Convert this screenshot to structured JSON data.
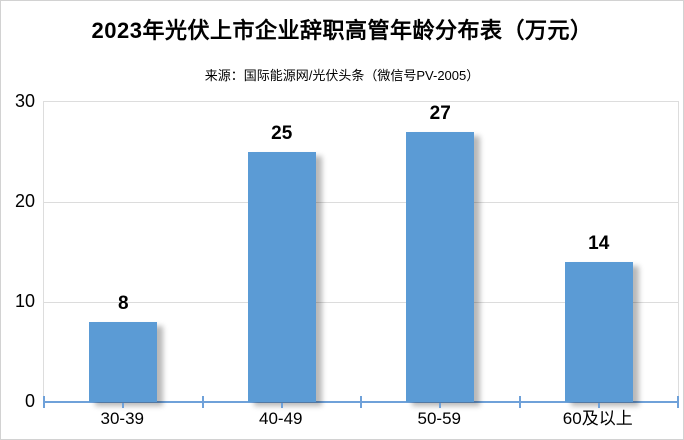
{
  "title": "2023年光伏上市企业辞职高管年龄分布表（万元）",
  "subtitle": "来源：国际能源网/光伏头条（微信号PV-2005）",
  "chart_data": {
    "type": "bar",
    "title": "2023年光伏上市企业辞职高管年龄分布表（万元）",
    "subtitle": "来源：国际能源网/光伏头条（微信号PV-2005）",
    "categories": [
      "30-39",
      "40-49",
      "50-59",
      "60及以上"
    ],
    "values": [
      8,
      25,
      27,
      14
    ],
    "xlabel": "",
    "ylabel": "",
    "ylim": [
      0,
      30
    ],
    "yticks": [
      0,
      10,
      20,
      30
    ],
    "grid": true,
    "legend": false,
    "bar_color": "#5B9BD5",
    "axis_color": "#6FA1D9",
    "gridline_color": "#DCDCDC",
    "plot_border_color": "#DDDDDD",
    "text_color": "#000000"
  }
}
